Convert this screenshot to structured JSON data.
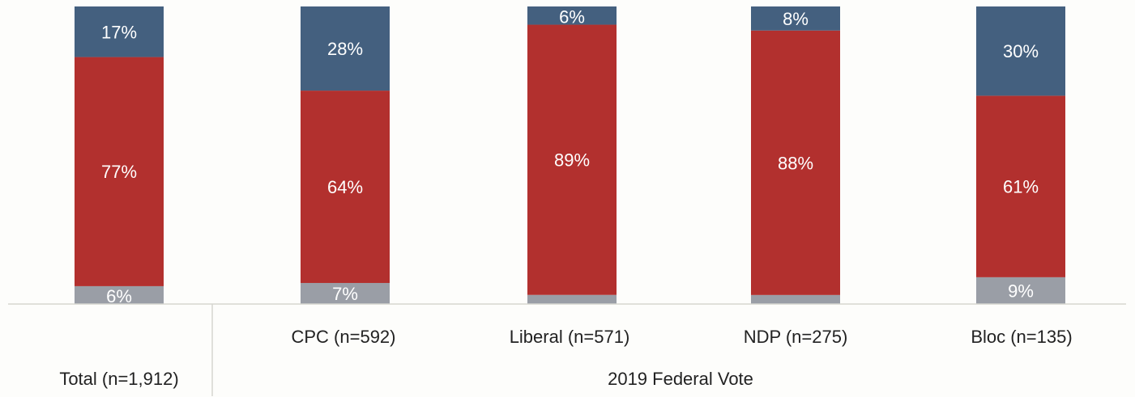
{
  "chart_data": {
    "type": "bar",
    "stacked": true,
    "orientation": "vertical",
    "categories": [
      "Total (n=1,912)",
      "CPC (n=592)",
      "Liberal (n=571)",
      "NDP (n=275)",
      "Bloc (n=135)"
    ],
    "group_label": "2019 Federal Vote",
    "series": [
      {
        "color": "#9a9ea6",
        "values": [
          6,
          7,
          3,
          3,
          9
        ],
        "labels": [
          "6%",
          "7%",
          "",
          "",
          "9%"
        ]
      },
      {
        "color": "#b2302e",
        "values": [
          77,
          64,
          89,
          88,
          61
        ],
        "labels": [
          "77%",
          "64%",
          "89%",
          "88%",
          "61%"
        ]
      },
      {
        "color": "#44607f",
        "values": [
          17,
          28,
          6,
          8,
          30
        ],
        "labels": [
          "17%",
          "28%",
          "6%",
          "8%",
          "30%"
        ]
      }
    ],
    "ylim": [
      0,
      100
    ],
    "legend": "none",
    "grid": false
  }
}
